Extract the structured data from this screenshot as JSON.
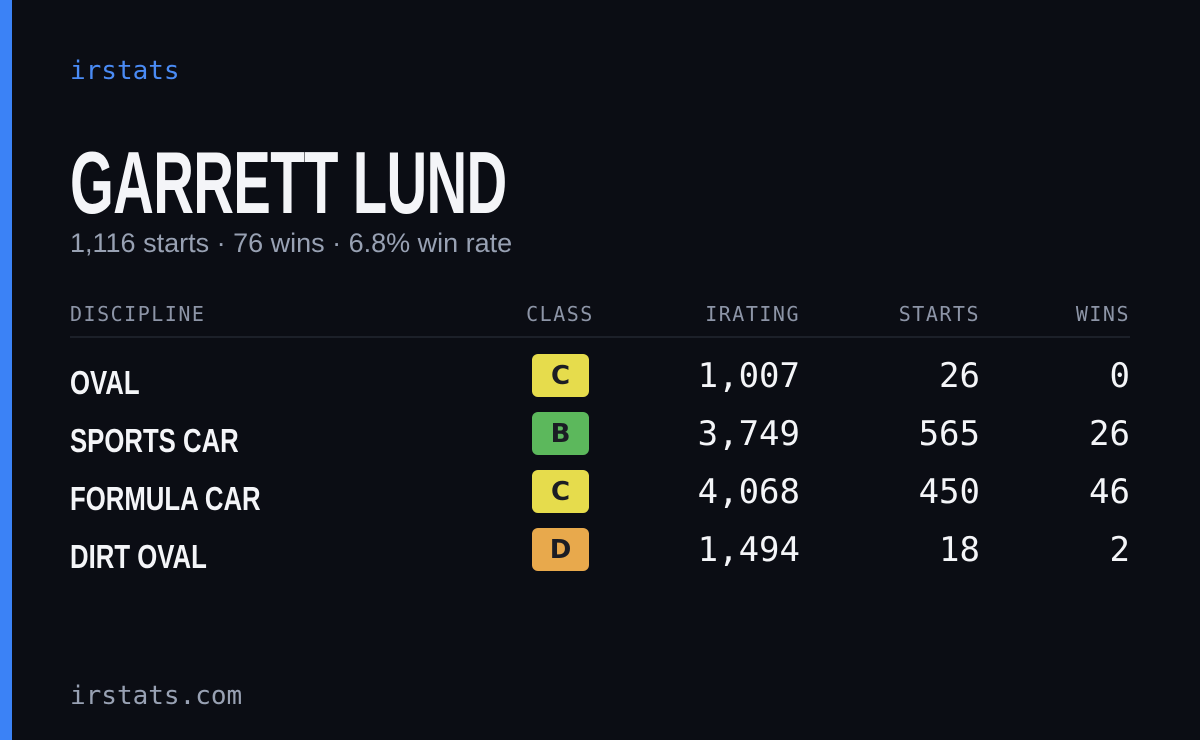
{
  "brand": "irstats",
  "driver": {
    "name": "GARRETT LUND",
    "summary": "1,116 starts · 76 wins · 6.8% win rate"
  },
  "table": {
    "columns": [
      "DISCIPLINE",
      "CLASS",
      "IRATING",
      "STARTS",
      "WINS"
    ],
    "rows": [
      {
        "discipline": "OVAL",
        "class": "C",
        "class_color": "#e6dc4c",
        "irating": "1,007",
        "starts": "26",
        "wins": "0"
      },
      {
        "discipline": "SPORTS CAR",
        "class": "B",
        "class_color": "#5cb85c",
        "irating": "3,749",
        "starts": "565",
        "wins": "26"
      },
      {
        "discipline": "FORMULA CAR",
        "class": "C",
        "class_color": "#e6dc4c",
        "irating": "4,068",
        "starts": "450",
        "wins": "46"
      },
      {
        "discipline": "DIRT OVAL",
        "class": "D",
        "class_color": "#e8a94c",
        "irating": "1,494",
        "starts": "18",
        "wins": "2"
      }
    ]
  },
  "footer": "irstats.com"
}
